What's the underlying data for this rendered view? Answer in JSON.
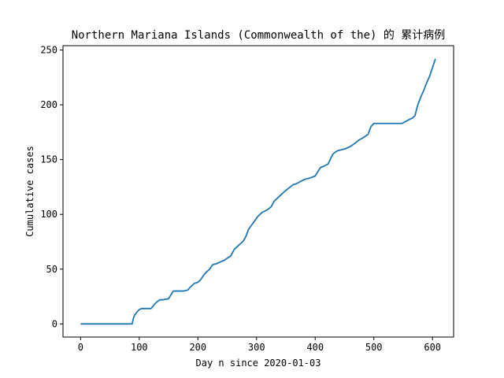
{
  "chart_data": {
    "type": "line",
    "title": "Northern Mariana Islands (Commonwealth of the) 的 累计病例",
    "xlabel": "Day n since 2020-01-03",
    "ylabel": "Cumulative cases",
    "xlim": [
      -30,
      636
    ],
    "ylim": [
      -12,
      254
    ],
    "x_ticks": [
      0,
      100,
      200,
      300,
      400,
      500,
      600
    ],
    "y_ticks": [
      0,
      50,
      100,
      150,
      200,
      250
    ],
    "grid": false,
    "series": [
      {
        "color": "#1f77b4",
        "x": [
          0,
          88,
          90,
          92,
          95,
          98,
          100,
          104,
          110,
          120,
          126,
          130,
          135,
          140,
          150,
          158,
          165,
          170,
          175,
          183,
          186,
          190,
          194,
          200,
          204,
          208,
          212,
          216,
          220,
          225,
          232,
          240,
          245,
          250,
          256,
          262,
          266,
          270,
          274,
          278,
          282,
          286,
          290,
          294,
          298,
          302,
          306,
          310,
          318,
          325,
          330,
          336,
          342,
          348,
          355,
          362,
          368,
          375,
          382,
          390,
          400,
          408,
          410,
          415,
          422,
          430,
          435,
          438,
          445,
          452,
          460,
          468,
          475,
          482,
          490,
          495,
          500,
          505,
          510,
          520,
          530,
          540,
          548,
          555,
          562,
          566,
          570,
          575,
          580,
          585,
          590,
          595,
          600,
          605
        ],
        "y": [
          0,
          0,
          5,
          8,
          10,
          12,
          13,
          14,
          14,
          14,
          18,
          20,
          22,
          22,
          23,
          30,
          30,
          30,
          30,
          31,
          33,
          35,
          37,
          38,
          40,
          43,
          46,
          48,
          50,
          54,
          55,
          57,
          58,
          60,
          62,
          68,
          70,
          72,
          74,
          76,
          80,
          86,
          89,
          92,
          95,
          98,
          100,
          102,
          104,
          107,
          112,
          115,
          118,
          121,
          124,
          127,
          128,
          130,
          132,
          133,
          135,
          142,
          143,
          144,
          146,
          155,
          157,
          158,
          159,
          160,
          162,
          165,
          168,
          170,
          173,
          180,
          183,
          183,
          183,
          183,
          183,
          183,
          183,
          185,
          187,
          188,
          190,
          200,
          207,
          213,
          220,
          226,
          234,
          242
        ]
      }
    ]
  }
}
